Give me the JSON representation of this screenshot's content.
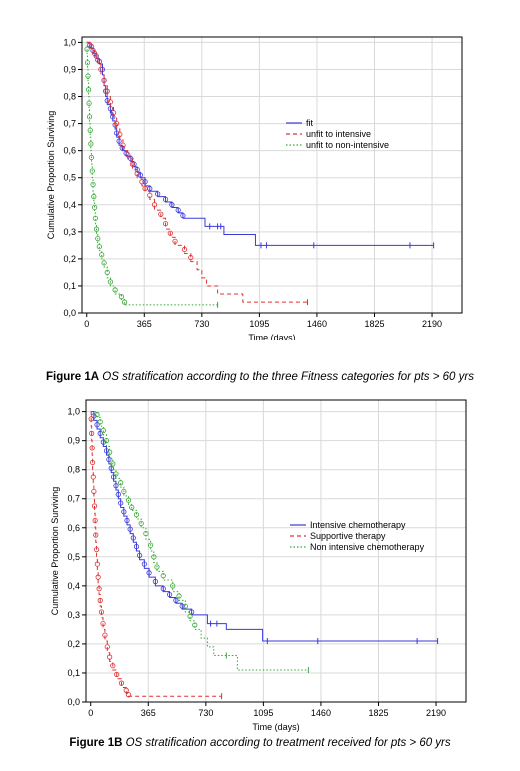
{
  "chart_data": [
    {
      "type": "line",
      "figure_label": "Figure 1A",
      "caption": "OS stratification according to the three Fitness categories for pts > 60 yrs",
      "xlabel": "Time (days)",
      "ylabel": "Cumulative Proportion Surviving",
      "xticks": [
        0,
        365,
        730,
        1095,
        1460,
        1825,
        2190
      ],
      "yticks": [
        "0,0",
        "0,1",
        "0,2",
        "0,3",
        "0,4",
        "0,5",
        "0,6",
        "0,7",
        "0,8",
        "0,9",
        "1,0"
      ],
      "xlim": [
        -30,
        2380
      ],
      "ylim": [
        0,
        1.02
      ],
      "grid": true,
      "legend_position": "right",
      "series": [
        {
          "name": "fit",
          "color": "#3a3adb",
          "dash": "solid",
          "steps": [
            [
              0,
              1.0
            ],
            [
              20,
              0.98
            ],
            [
              40,
              0.96
            ],
            [
              60,
              0.94
            ],
            [
              80,
              0.92
            ],
            [
              100,
              0.88
            ],
            [
              110,
              0.84
            ],
            [
              120,
              0.8
            ],
            [
              130,
              0.77
            ],
            [
              150,
              0.74
            ],
            [
              165,
              0.71
            ],
            [
              180,
              0.68
            ],
            [
              190,
              0.65
            ],
            [
              205,
              0.62
            ],
            [
              225,
              0.6
            ],
            [
              250,
              0.58
            ],
            [
              280,
              0.56
            ],
            [
              300,
              0.54
            ],
            [
              320,
              0.52
            ],
            [
              340,
              0.5
            ],
            [
              370,
              0.47
            ],
            [
              400,
              0.45
            ],
            [
              450,
              0.43
            ],
            [
              500,
              0.41
            ],
            [
              540,
              0.39
            ],
            [
              580,
              0.37
            ],
            [
              610,
              0.35
            ],
            [
              750,
              0.32
            ],
            [
              870,
              0.29
            ],
            [
              1070,
              0.25
            ],
            [
              2200,
              0.25
            ]
          ],
          "censors": [
            155,
            780,
            830,
            850,
            1105,
            1140,
            1440,
            2050,
            2200
          ],
          "circle_markers": true
        },
        {
          "name": "unfit to intensive",
          "color": "#e03030",
          "dash": "dashed",
          "steps": [
            [
              0,
              1.0
            ],
            [
              30,
              0.97
            ],
            [
              50,
              0.95
            ],
            [
              70,
              0.92
            ],
            [
              90,
              0.88
            ],
            [
              110,
              0.84
            ],
            [
              130,
              0.8
            ],
            [
              150,
              0.76
            ],
            [
              170,
              0.72
            ],
            [
              190,
              0.68
            ],
            [
              210,
              0.64
            ],
            [
              230,
              0.6
            ],
            [
              260,
              0.57
            ],
            [
              290,
              0.53
            ],
            [
              320,
              0.5
            ],
            [
              350,
              0.47
            ],
            [
              370,
              0.45
            ],
            [
              400,
              0.42
            ],
            [
              430,
              0.38
            ],
            [
              470,
              0.35
            ],
            [
              500,
              0.31
            ],
            [
              530,
              0.28
            ],
            [
              560,
              0.25
            ],
            [
              620,
              0.22
            ],
            [
              660,
              0.19
            ],
            [
              700,
              0.16
            ],
            [
              730,
              0.13
            ],
            [
              760,
              0.1
            ],
            [
              830,
              0.07
            ],
            [
              990,
              0.04
            ],
            [
              1400,
              0.04
            ]
          ],
          "censors": [
            1400
          ],
          "circle_markers": true
        },
        {
          "name": "unfit to non-intensive",
          "color": "#34a834",
          "dash": "dotted",
          "steps": [
            [
              0,
              1.0
            ],
            [
              2,
              0.95
            ],
            [
              5,
              0.9
            ],
            [
              8,
              0.85
            ],
            [
              12,
              0.8
            ],
            [
              15,
              0.75
            ],
            [
              18,
              0.7
            ],
            [
              22,
              0.65
            ],
            [
              26,
              0.6
            ],
            [
              30,
              0.55
            ],
            [
              35,
              0.5
            ],
            [
              40,
              0.45
            ],
            [
              45,
              0.41
            ],
            [
              50,
              0.37
            ],
            [
              55,
              0.33
            ],
            [
              62,
              0.29
            ],
            [
              70,
              0.26
            ],
            [
              80,
              0.23
            ],
            [
              95,
              0.2
            ],
            [
              110,
              0.17
            ],
            [
              130,
              0.13
            ],
            [
              150,
              0.1
            ],
            [
              180,
              0.07
            ],
            [
              220,
              0.05
            ],
            [
              240,
              0.03
            ],
            [
              830,
              0.03
            ]
          ],
          "censors": [
            830
          ],
          "circle_markers": true
        }
      ]
    },
    {
      "type": "line",
      "figure_label": "Figure 1B",
      "caption": "OS stratification according to treatment received for pts > 60 yrs",
      "xlabel": "Time (days)",
      "ylabel": "Cumulative Proportion Surviving",
      "xticks": [
        0,
        365,
        730,
        1095,
        1460,
        1825,
        2190
      ],
      "yticks": [
        "0,0",
        "0,1",
        "0,2",
        "0,3",
        "0,4",
        "0,5",
        "0,6",
        "0,7",
        "0,8",
        "0,9",
        "1,0"
      ],
      "xlim": [
        -30,
        2380
      ],
      "ylim": [
        0,
        1.04
      ],
      "grid": true,
      "legend_position": "right",
      "series": [
        {
          "name": "Intensive chemotherapy",
          "color": "#3a3adb",
          "dash": "solid",
          "steps": [
            [
              0,
              1.0
            ],
            [
              20,
              0.97
            ],
            [
              40,
              0.94
            ],
            [
              60,
              0.91
            ],
            [
              80,
              0.88
            ],
            [
              100,
              0.85
            ],
            [
              115,
              0.82
            ],
            [
              130,
              0.79
            ],
            [
              145,
              0.76
            ],
            [
              160,
              0.73
            ],
            [
              175,
              0.7
            ],
            [
              190,
              0.67
            ],
            [
              210,
              0.64
            ],
            [
              230,
              0.61
            ],
            [
              250,
              0.58
            ],
            [
              270,
              0.55
            ],
            [
              290,
              0.52
            ],
            [
              310,
              0.49
            ],
            [
              340,
              0.46
            ],
            [
              370,
              0.43
            ],
            [
              410,
              0.4
            ],
            [
              460,
              0.38
            ],
            [
              500,
              0.36
            ],
            [
              540,
              0.34
            ],
            [
              580,
              0.32
            ],
            [
              640,
              0.3
            ],
            [
              740,
              0.27
            ],
            [
              860,
              0.25
            ],
            [
              1090,
              0.21
            ],
            [
              2200,
              0.21
            ]
          ],
          "censors": [
            760,
            800,
            1120,
            1440,
            2070,
            2200
          ],
          "circle_markers": true
        },
        {
          "name": "Supportive therapy",
          "color": "#e03030",
          "dash": "dashed",
          "steps": [
            [
              0,
              1.0
            ],
            [
              3,
              0.95
            ],
            [
              6,
              0.9
            ],
            [
              9,
              0.85
            ],
            [
              12,
              0.8
            ],
            [
              16,
              0.75
            ],
            [
              20,
              0.7
            ],
            [
              24,
              0.65
            ],
            [
              28,
              0.6
            ],
            [
              32,
              0.55
            ],
            [
              37,
              0.5
            ],
            [
              42,
              0.45
            ],
            [
              47,
              0.41
            ],
            [
              53,
              0.37
            ],
            [
              60,
              0.33
            ],
            [
              68,
              0.29
            ],
            [
              78,
              0.25
            ],
            [
              90,
              0.21
            ],
            [
              105,
              0.17
            ],
            [
              120,
              0.14
            ],
            [
              140,
              0.11
            ],
            [
              165,
              0.08
            ],
            [
              195,
              0.05
            ],
            [
              225,
              0.03
            ],
            [
              240,
              0.02
            ],
            [
              830,
              0.02
            ]
          ],
          "censors": [
            830
          ],
          "circle_markers": true
        },
        {
          "name": "Non intensive chemotherapy",
          "color": "#34a834",
          "dash": "dotted",
          "steps": [
            [
              0,
              1.0
            ],
            [
              40,
              0.98
            ],
            [
              60,
              0.95
            ],
            [
              80,
              0.92
            ],
            [
              100,
              0.88
            ],
            [
              120,
              0.84
            ],
            [
              140,
              0.8
            ],
            [
              160,
              0.77
            ],
            [
              190,
              0.74
            ],
            [
              210,
              0.71
            ],
            [
              240,
              0.68
            ],
            [
              260,
              0.66
            ],
            [
              290,
              0.63
            ],
            [
              320,
              0.6
            ],
            [
              350,
              0.56
            ],
            [
              380,
              0.52
            ],
            [
              400,
              0.48
            ],
            [
              420,
              0.45
            ],
            [
              460,
              0.42
            ],
            [
              520,
              0.38
            ],
            [
              560,
              0.35
            ],
            [
              600,
              0.31
            ],
            [
              630,
              0.28
            ],
            [
              660,
              0.25
            ],
            [
              700,
              0.22
            ],
            [
              740,
              0.19
            ],
            [
              780,
              0.16
            ],
            [
              830,
              0.16
            ],
            [
              930,
              0.11
            ],
            [
              1380,
              0.11
            ]
          ],
          "censors": [
            860,
            1380
          ],
          "circle_markers": true
        }
      ]
    }
  ]
}
